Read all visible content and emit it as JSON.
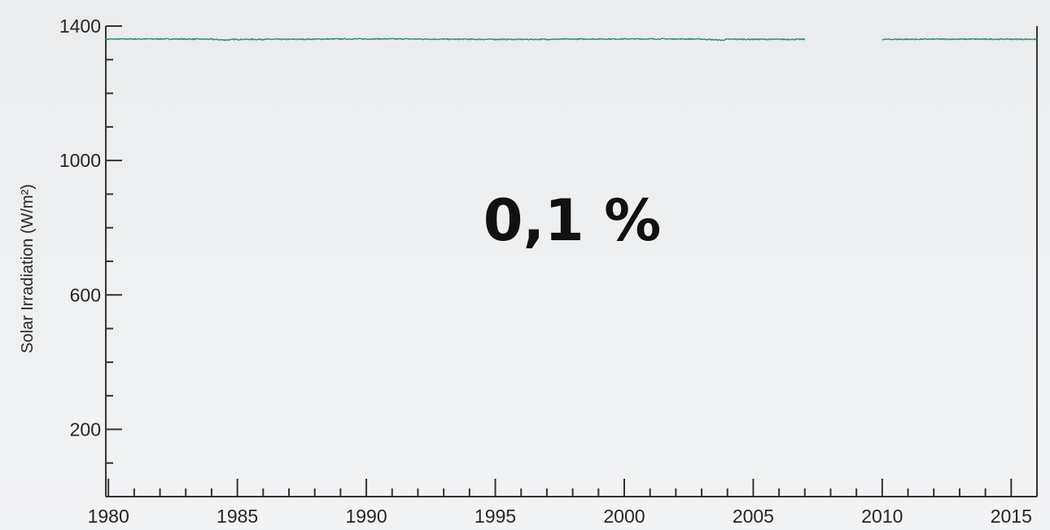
{
  "chart_data": {
    "type": "line",
    "title": "",
    "xlabel": "",
    "ylabel": "Solar Irradiation (W/m²)",
    "xlim": [
      1979.9,
      2016
    ],
    "ylim": [
      0,
      1400
    ],
    "x_major_ticks": [
      1980,
      1985,
      1990,
      1995,
      2000,
      2005,
      2010,
      2015
    ],
    "y_major_ticks": [
      200,
      600,
      1000,
      1400
    ],
    "annotation": "0,1 %",
    "grid": false,
    "legend": "none",
    "series": [
      {
        "color": "#2e8b6e",
        "x": [
          1978.9,
          1980,
          1981,
          1982,
          1983,
          1984,
          1984.5,
          1985,
          1986,
          1987,
          1988,
          1989,
          1990,
          1991,
          1992,
          1993,
          1994,
          1995,
          1996,
          1997,
          1998,
          1999,
          2000,
          2001,
          2002,
          2003,
          2003.8,
          2004,
          2005,
          2006,
          2007,
          2008,
          2009,
          2010,
          2011,
          2012,
          2013,
          2014,
          2015,
          2016
        ],
        "y": [
          1361.2,
          1361.0,
          1361.5,
          1361.6,
          1361.2,
          1360.8,
          1358.5,
          1360.5,
          1360.5,
          1360.6,
          1361.0,
          1361.6,
          1361.7,
          1361.7,
          1361.3,
          1360.9,
          1360.6,
          1360.5,
          1360.4,
          1360.6,
          1361.1,
          1361.4,
          1361.6,
          1361.7,
          1361.6,
          1361.2,
          1358.0,
          1360.8,
          1360.6,
          1360.5,
          1360.4,
          null,
          null,
          1360.5,
          1360.7,
          1360.9,
          1361.0,
          1361.0,
          1360.9,
          1360.7
        ]
      }
    ]
  }
}
